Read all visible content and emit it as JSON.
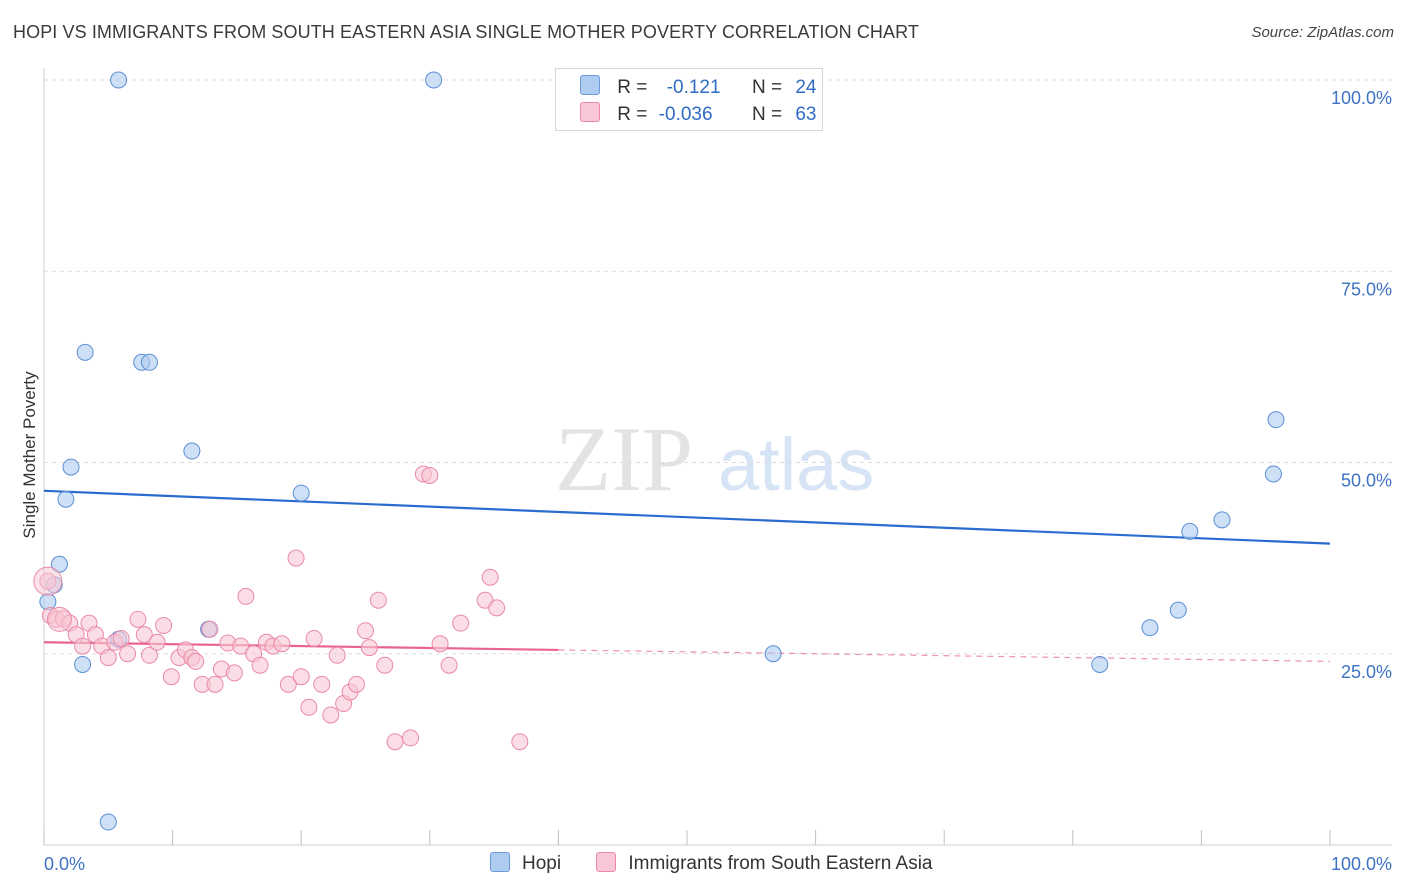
{
  "header": {
    "title": "HOPI VS IMMIGRANTS FROM SOUTH EASTERN ASIA SINGLE MOTHER POVERTY CORRELATION CHART",
    "source": "Source: ZipAtlas.com"
  },
  "watermark": {
    "zip": "ZIP",
    "atlas": "atlas"
  },
  "legend": {
    "rows": [
      {
        "r_label": "R =",
        "r_value": "-0.121",
        "n_label": "N =",
        "n_value": "24",
        "color": "#aecbf0",
        "border": "#6e9ad8"
      },
      {
        "r_label": "R =",
        "r_value": "-0.036",
        "n_label": "N =",
        "n_value": "63",
        "color": "#f8c6d4",
        "border": "#e98aa8"
      }
    ]
  },
  "bottom_legend": {
    "hopi": "Hopi",
    "sea": "Immigrants from South Eastern Asia"
  },
  "chart_data": {
    "type": "scatter",
    "title": "HOPI VS IMMIGRANTS FROM SOUTH EASTERN ASIA SINGLE MOTHER POVERTY CORRELATION CHART",
    "xlabel": "",
    "ylabel": "Single Mother Poverty",
    "xlim": [
      0,
      100
    ],
    "ylim": [
      0,
      100
    ],
    "x_tick_labels": [
      "0.0%",
      "100.0%"
    ],
    "y_tick_labels": [
      {
        "value": 25,
        "label": "25.0%"
      },
      {
        "value": 50,
        "label": "50.0%"
      },
      {
        "value": 75,
        "label": "75.0%"
      },
      {
        "value": 100,
        "label": "100.0%"
      }
    ],
    "grid": true,
    "series": [
      {
        "name": "Hopi",
        "color": "#aecbf0",
        "edge": "#5b8fd6",
        "trend": {
          "x": [
            0,
            100
          ],
          "y": [
            46.3,
            39.4
          ],
          "color": "#2a6bcf"
        },
        "points": [
          [
            0.3,
            31.8
          ],
          [
            0.8,
            34.0
          ],
          [
            1.2,
            36.7
          ],
          [
            1.7,
            45.2
          ],
          [
            2.1,
            49.4
          ],
          [
            3.0,
            23.6
          ],
          [
            3.2,
            64.4
          ],
          [
            5.0,
            3.0
          ],
          [
            5.8,
            100.0
          ],
          [
            5.8,
            26.9
          ],
          [
            7.6,
            63.1
          ],
          [
            8.2,
            63.1
          ],
          [
            11.5,
            51.5
          ],
          [
            12.8,
            28.2
          ],
          [
            20.0,
            46.0
          ],
          [
            30.3,
            100.0
          ],
          [
            56.7,
            25.0
          ],
          [
            82.1,
            23.6
          ],
          [
            86.0,
            28.4
          ],
          [
            88.2,
            30.7
          ],
          [
            89.1,
            41.0
          ],
          [
            91.6,
            42.5
          ],
          [
            95.6,
            48.5
          ],
          [
            95.8,
            55.6
          ]
        ]
      },
      {
        "name": "Immigrants from South Eastern Asia",
        "color": "#f8c6d4",
        "edge": "#e98aa8",
        "trend": {
          "x": [
            0,
            40
          ],
          "y": [
            26.5,
            25.5
          ],
          "dashed_to": [
            100,
            24.0
          ],
          "color": "#e8648e"
        },
        "points": [
          [
            0.3,
            34.5
          ],
          [
            0.5,
            30.0
          ],
          [
            1.0,
            29.5
          ],
          [
            1.5,
            29.6
          ],
          [
            2.0,
            29.0
          ],
          [
            2.5,
            27.5
          ],
          [
            3.0,
            26.0
          ],
          [
            3.5,
            29.0
          ],
          [
            4.0,
            27.5
          ],
          [
            4.5,
            26.0
          ],
          [
            5.0,
            24.5
          ],
          [
            5.5,
            26.5
          ],
          [
            6.0,
            27.0
          ],
          [
            6.5,
            25.0
          ],
          [
            7.3,
            29.5
          ],
          [
            7.8,
            27.5
          ],
          [
            8.2,
            24.8
          ],
          [
            8.8,
            26.5
          ],
          [
            9.3,
            28.7
          ],
          [
            9.9,
            22.0
          ],
          [
            10.5,
            24.5
          ],
          [
            11.0,
            25.5
          ],
          [
            11.5,
            24.5
          ],
          [
            11.8,
            24.0
          ],
          [
            12.3,
            21.0
          ],
          [
            12.9,
            28.2
          ],
          [
            13.3,
            21.0
          ],
          [
            13.8,
            23.0
          ],
          [
            14.3,
            26.4
          ],
          [
            14.8,
            22.5
          ],
          [
            15.3,
            26.0
          ],
          [
            15.7,
            32.5
          ],
          [
            16.3,
            25.0
          ],
          [
            16.8,
            23.5
          ],
          [
            17.3,
            26.5
          ],
          [
            17.8,
            26.0
          ],
          [
            18.5,
            26.3
          ],
          [
            19.0,
            21.0
          ],
          [
            19.6,
            37.5
          ],
          [
            20.0,
            22.0
          ],
          [
            20.6,
            18.0
          ],
          [
            21.0,
            27.0
          ],
          [
            21.6,
            21.0
          ],
          [
            22.3,
            17.0
          ],
          [
            22.8,
            24.8
          ],
          [
            23.3,
            18.5
          ],
          [
            23.8,
            20.0
          ],
          [
            24.3,
            21.0
          ],
          [
            25.0,
            28.0
          ],
          [
            25.3,
            25.8
          ],
          [
            26.0,
            32.0
          ],
          [
            26.5,
            23.5
          ],
          [
            27.3,
            13.5
          ],
          [
            28.5,
            14.0
          ],
          [
            29.5,
            48.5
          ],
          [
            30.0,
            48.3
          ],
          [
            30.8,
            26.3
          ],
          [
            31.5,
            23.5
          ],
          [
            32.4,
            29.0
          ],
          [
            34.3,
            32.0
          ],
          [
            34.7,
            35.0
          ],
          [
            35.2,
            31.0
          ],
          [
            37.0,
            13.5
          ]
        ]
      }
    ]
  }
}
